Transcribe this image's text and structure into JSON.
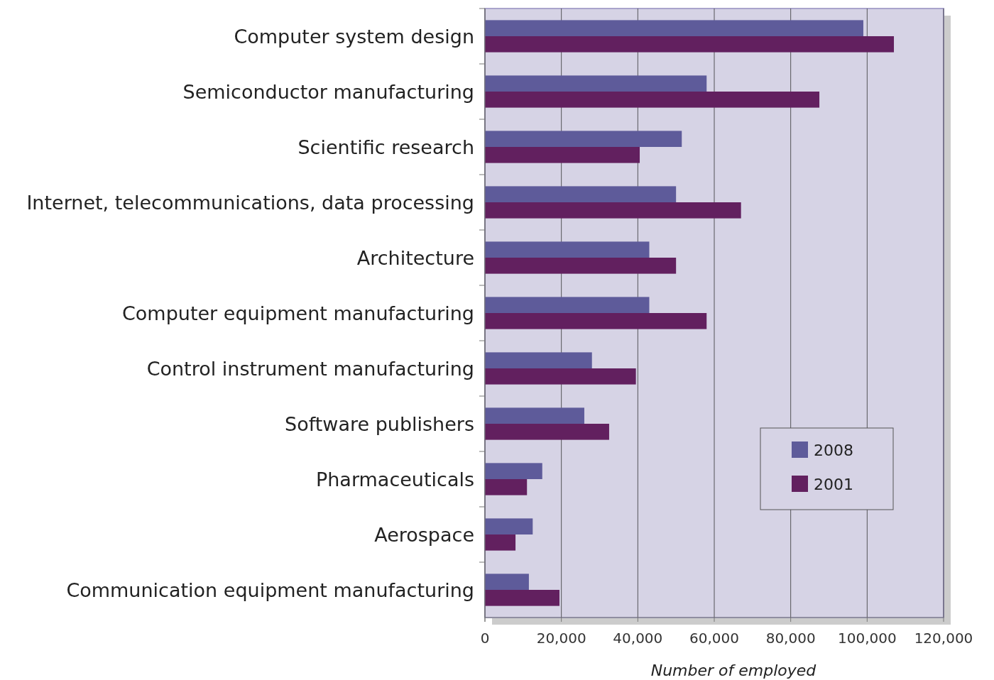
{
  "chart_data": {
    "type": "bar",
    "orientation": "horizontal",
    "xlabel": "Number of employed",
    "categories": [
      "Computer system design",
      "Semiconductor manufacturing",
      "Scientific research",
      "Internet, telecommunications, data processing",
      "Architecture",
      "Computer equipment manufacturing",
      "Control instrument manufacturing",
      "Software publishers",
      "Pharmaceuticals",
      "Aerospace",
      "Communication equipment manufacturing"
    ],
    "series": [
      {
        "name": "2008",
        "color": "#5e5b9a",
        "values": [
          99000,
          58000,
          51500,
          50000,
          43000,
          43000,
          28000,
          26000,
          15000,
          12500,
          11500
        ]
      },
      {
        "name": "2001",
        "color": "#62205f",
        "values": [
          107000,
          87500,
          40500,
          67000,
          50000,
          58000,
          39500,
          32500,
          11000,
          8000,
          19500
        ]
      }
    ],
    "xlim": [
      0,
      120000
    ],
    "xticks": [
      {
        "value": 0,
        "label": "0"
      },
      {
        "value": 20000,
        "label": "20,000"
      },
      {
        "value": 40000,
        "label": "40,000"
      },
      {
        "value": 60000,
        "label": "60,000"
      },
      {
        "value": 80000,
        "label": "80,000"
      },
      {
        "value": 100000,
        "label": "100,000"
      },
      {
        "value": 120000,
        "label": "120,000"
      }
    ],
    "grid": "x",
    "legend": "bottom right"
  }
}
